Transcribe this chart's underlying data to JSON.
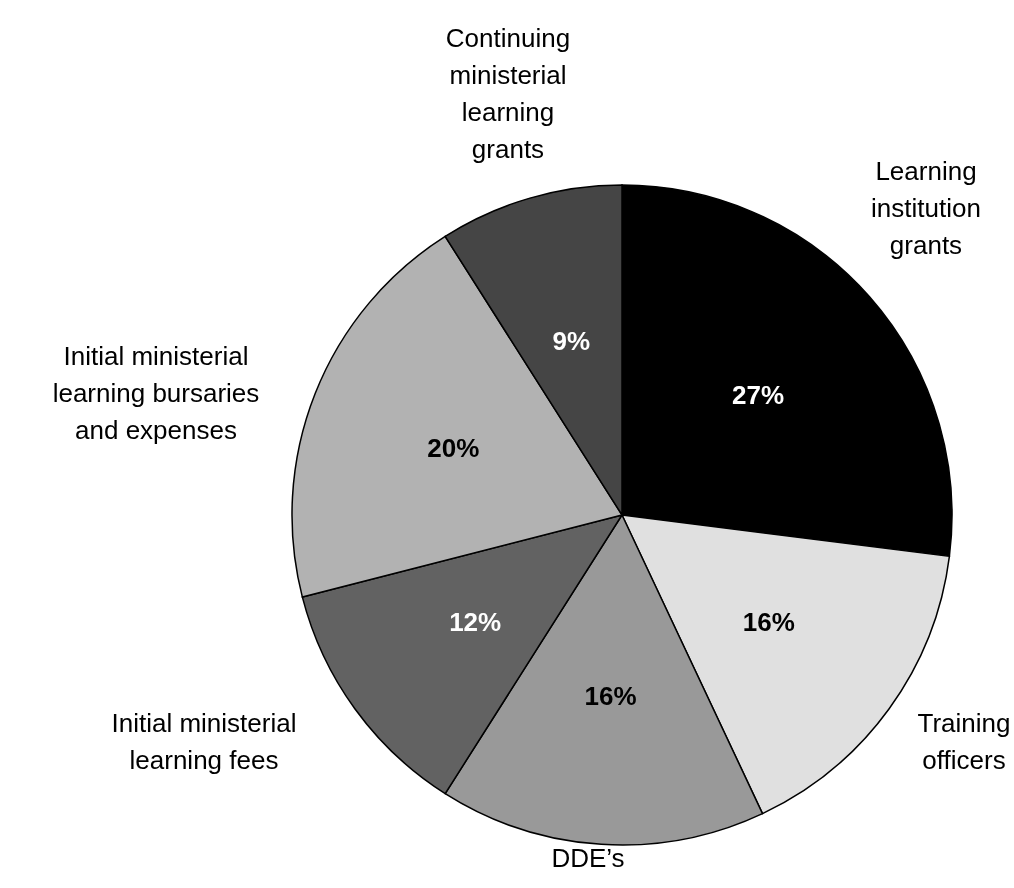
{
  "chart_data": {
    "type": "pie",
    "categories": [
      "Learning institution grants",
      "Training officers",
      "DDE’s",
      "Initial ministerial learning fees",
      "Initial ministerial learning bursaries and expenses",
      "Continuing ministerial learning grants"
    ],
    "values": [
      27,
      16,
      16,
      12,
      20,
      9
    ],
    "colors": [
      "#000000",
      "#e0e0e0",
      "#999999",
      "#626262",
      "#b2b2b2",
      "#454545"
    ],
    "value_labels": [
      "27%",
      "16%",
      "16%",
      "12%",
      "20%",
      "9%"
    ]
  }
}
